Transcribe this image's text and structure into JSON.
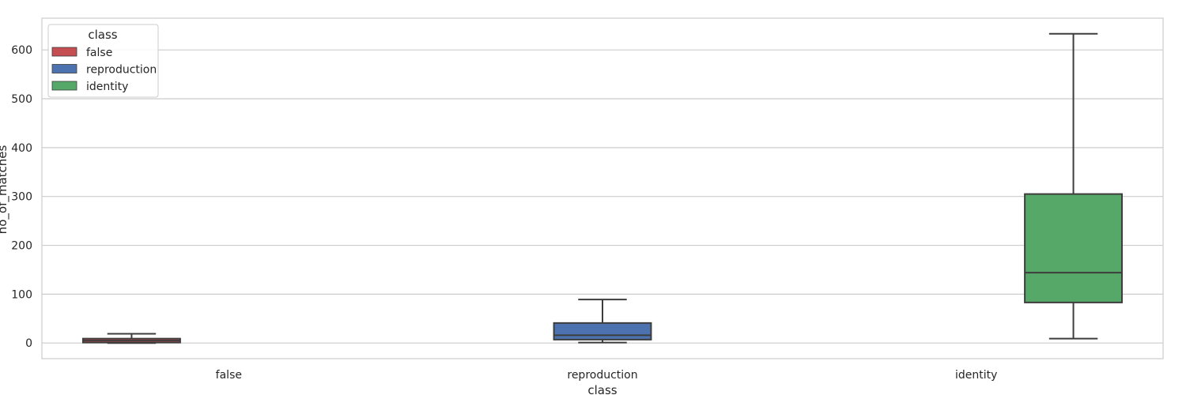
{
  "chart_data": {
    "type": "boxplot",
    "xlabel": "class",
    "ylabel": "no_of_matches",
    "ylim": [
      -32,
      665
    ],
    "yticks": [
      0,
      100,
      200,
      300,
      400,
      500,
      600
    ],
    "categories": [
      "false",
      "reproduction",
      "identity"
    ],
    "boxes": [
      {
        "category": "false",
        "whisker_low": 0,
        "q1": 1,
        "median": 5,
        "q3": 9,
        "whisker_high": 19,
        "color": "#c44e52"
      },
      {
        "category": "reproduction",
        "whisker_low": 1,
        "q1": 7,
        "median": 16,
        "q3": 41,
        "whisker_high": 89,
        "color": "#4c72b0"
      },
      {
        "category": "identity",
        "whisker_low": 9,
        "q1": 83,
        "median": 144,
        "q3": 305,
        "whisker_high": 633,
        "color": "#55a868"
      }
    ],
    "grid": true,
    "legend": {
      "title": "class",
      "placement": "upper-left",
      "entries": [
        {
          "label": "false",
          "color": "#c44e52"
        },
        {
          "label": "reproduction",
          "color": "#4c72b0"
        },
        {
          "label": "identity",
          "color": "#55a868"
        }
      ]
    }
  }
}
